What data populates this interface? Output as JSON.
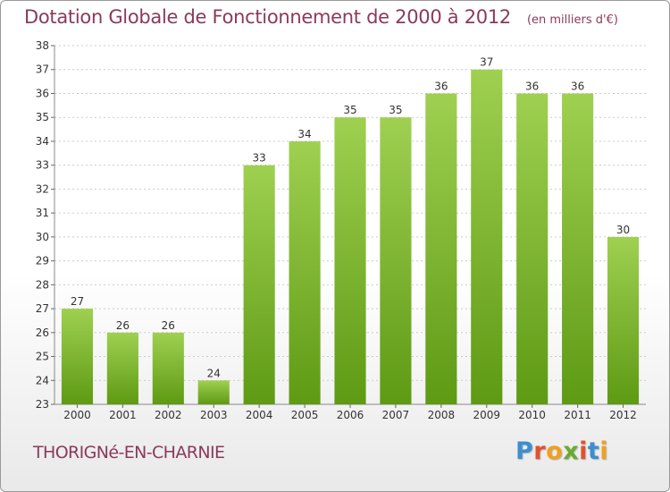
{
  "header": {
    "title": "Dotation Globale de Fonctionnement de 2000 à 2012",
    "unit": "(en milliers d'€)"
  },
  "footer": {
    "commune": "THORIGNé-EN-CHARNIE",
    "logo": {
      "letters": [
        "P",
        "r",
        "o",
        "x",
        "i",
        "t",
        "i"
      ],
      "colors": [
        "#3a8fd0",
        "#e0522d",
        "#f0a020",
        "#6aab2e",
        "#e0522d",
        "#3a8fd0",
        "#f0a020"
      ]
    }
  },
  "colors": {
    "bar_light": "#9fd051",
    "bar_dark": "#5e9a14",
    "title": "#8a3a5a",
    "grid": "#cccccc"
  },
  "chart_data": {
    "type": "bar",
    "title": "Dotation Globale de Fonctionnement de 2000 à 2012",
    "subtitle": "(en milliers d'€)",
    "categories": [
      "2000",
      "2001",
      "2002",
      "2003",
      "2004",
      "2005",
      "2006",
      "2007",
      "2008",
      "2009",
      "2010",
      "2011",
      "2012"
    ],
    "values": [
      27,
      26,
      26,
      24,
      33,
      34,
      35,
      35,
      36,
      37,
      36,
      36,
      30
    ],
    "ylim": [
      23,
      38
    ],
    "yticks": [
      23,
      24,
      25,
      26,
      27,
      28,
      29,
      30,
      31,
      32,
      33,
      34,
      35,
      36,
      37,
      38
    ],
    "grid": true,
    "grid_axis": "y",
    "data_labels": true
  }
}
